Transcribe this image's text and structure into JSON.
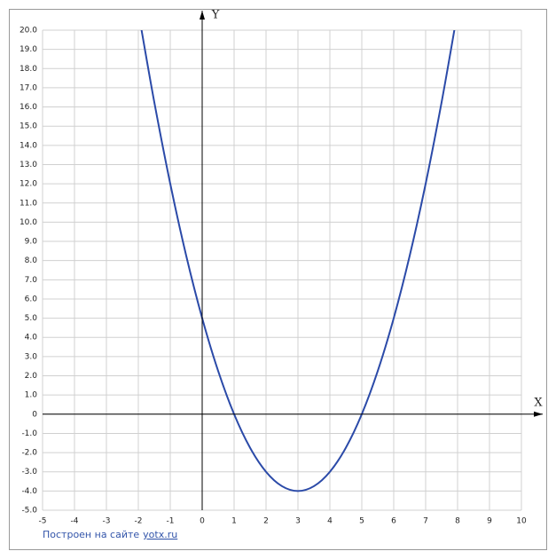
{
  "chart_data": {
    "type": "line",
    "xlabel": "X",
    "ylabel": "Y",
    "x": [
      -1.9,
      -1.5,
      -1,
      -0.5,
      0,
      0.5,
      1,
      1.5,
      2,
      2.5,
      3,
      3.5,
      4,
      4.5,
      5,
      5.5,
      6,
      6.5,
      7,
      7.5,
      7.9
    ],
    "values": [
      20.01,
      16.25,
      12,
      8.25,
      5,
      2.25,
      0,
      -1.75,
      -3,
      -3.75,
      -4,
      -3.75,
      -3,
      -1.75,
      0,
      2.25,
      5,
      8.25,
      12,
      16.25,
      20.01
    ],
    "color": "#2b4aa8",
    "xlim": [
      -5,
      10
    ],
    "ylim": [
      -5,
      20
    ],
    "xticks": [
      -5,
      -4,
      -3,
      -2,
      -1,
      0,
      1,
      2,
      3,
      4,
      5,
      6,
      7,
      8,
      9,
      10
    ],
    "yticks": [
      {
        "value": -5,
        "label": "-5.0"
      },
      {
        "value": -4,
        "label": "-4.0"
      },
      {
        "value": -3,
        "label": "-3.0"
      },
      {
        "value": -2,
        "label": "-2.0"
      },
      {
        "value": -1,
        "label": "-1.0"
      },
      {
        "value": 0,
        "label": "0"
      },
      {
        "value": 1,
        "label": "1.0"
      },
      {
        "value": 2,
        "label": "2.0"
      },
      {
        "value": 3,
        "label": "3.0"
      },
      {
        "value": 4,
        "label": "4.0"
      },
      {
        "value": 5,
        "label": "5.0"
      },
      {
        "value": 6,
        "label": "6.0"
      },
      {
        "value": 7,
        "label": "7.0"
      },
      {
        "value": 8,
        "label": "8.0"
      },
      {
        "value": 9,
        "label": "9.0"
      },
      {
        "value": 10,
        "label": "10.0"
      },
      {
        "value": 11,
        "label": "11.0"
      },
      {
        "value": 12,
        "label": "12.0"
      },
      {
        "value": 13,
        "label": "13.0"
      },
      {
        "value": 14,
        "label": "14.0"
      },
      {
        "value": 15,
        "label": "15.0"
      },
      {
        "value": 16,
        "label": "16.0"
      },
      {
        "value": 17,
        "label": "17.0"
      },
      {
        "value": 18,
        "label": "18.0"
      },
      {
        "value": 19,
        "label": "19.0"
      },
      {
        "value": 20,
        "label": "20.0"
      }
    ],
    "grid": true
  },
  "credit": {
    "text": "Построен на сайте",
    "link": "yotx.ru"
  }
}
